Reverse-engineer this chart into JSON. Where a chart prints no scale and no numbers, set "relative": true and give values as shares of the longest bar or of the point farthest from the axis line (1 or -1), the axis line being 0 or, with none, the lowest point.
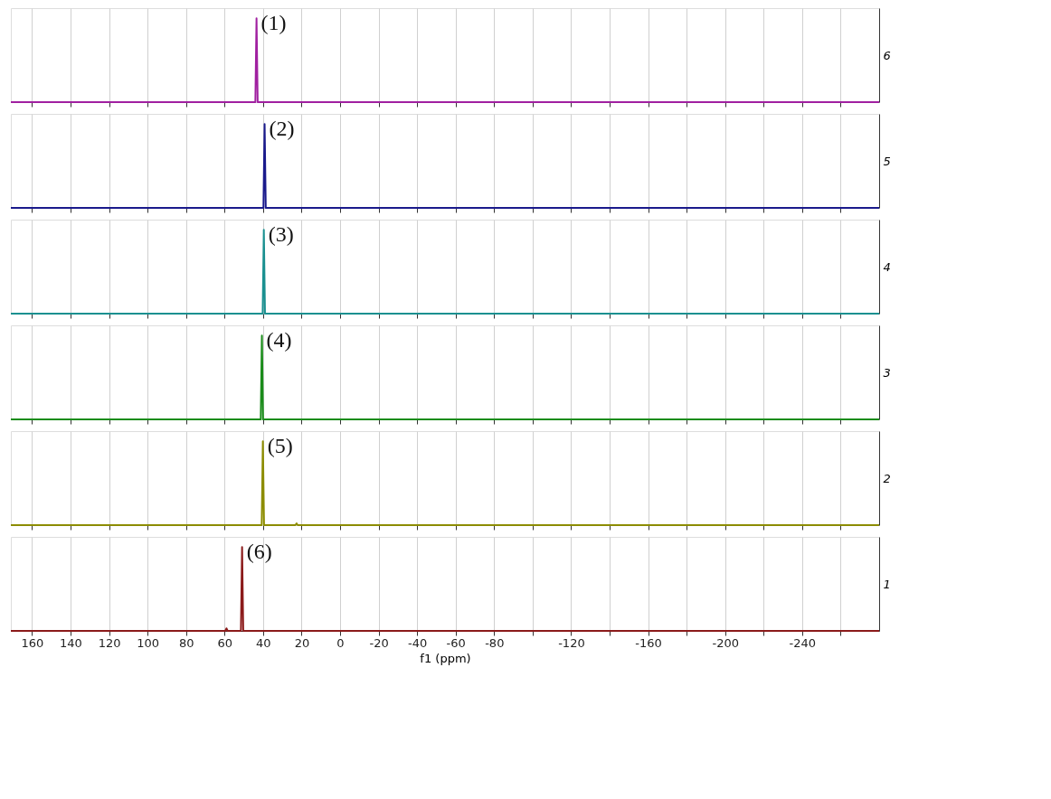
{
  "chart_data": [
    {
      "type": "line",
      "relative": true,
      "ylabel": "6",
      "grid": "x",
      "tick_labels": false,
      "xlim": [
        171,
        -280
      ],
      "xticks": [
        160,
        140,
        120,
        100,
        80,
        60,
        40,
        20,
        0,
        -20,
        -40,
        -60,
        -80,
        {
          "value": -100,
          "label": null
        },
        -120,
        {
          "value": -140,
          "label": null
        },
        -160,
        {
          "value": -180,
          "label": null
        },
        -200,
        {
          "value": -220,
          "label": null
        },
        -240,
        {
          "value": -260,
          "label": null
        }
      ],
      "series": [
        {
          "color": "#a020a0",
          "x": [
            171,
            44,
            43.4,
            42.8,
            -280
          ],
          "values": [
            0,
            0,
            1,
            0,
            0
          ]
        }
      ],
      "annotations": [
        {
          "text": "(1)",
          "x": 43.4,
          "y": 1
        }
      ]
    },
    {
      "type": "line",
      "relative": true,
      "ylabel": "5",
      "grid": "x",
      "tick_labels": false,
      "xlim": [
        171,
        -280
      ],
      "xticks": [
        160,
        140,
        120,
        100,
        80,
        60,
        40,
        20,
        0,
        -20,
        -40,
        -60,
        -80,
        {
          "value": -100,
          "label": null
        },
        -120,
        {
          "value": -140,
          "label": null
        },
        -160,
        {
          "value": -180,
          "label": null
        },
        -200,
        {
          "value": -220,
          "label": null
        },
        -240,
        {
          "value": -260,
          "label": null
        }
      ],
      "series": [
        {
          "color": "#1a1a8c",
          "x": [
            171,
            39.8,
            39.2,
            38.6,
            -280
          ],
          "values": [
            0,
            0,
            1,
            0,
            0
          ]
        }
      ],
      "annotations": [
        {
          "text": "(2)",
          "x": 39.2,
          "y": 1
        }
      ]
    },
    {
      "type": "line",
      "relative": true,
      "ylabel": "4",
      "grid": "x",
      "tick_labels": false,
      "xlim": [
        171,
        -280
      ],
      "xticks": [
        160,
        140,
        120,
        100,
        80,
        60,
        40,
        20,
        0,
        -20,
        -40,
        -60,
        -80,
        {
          "value": -100,
          "label": null
        },
        -120,
        {
          "value": -140,
          "label": null
        },
        -160,
        {
          "value": -180,
          "label": null
        },
        -200,
        {
          "value": -220,
          "label": null
        },
        -240,
        {
          "value": -260,
          "label": null
        }
      ],
      "series": [
        {
          "color": "#1a9090",
          "x": [
            171,
            40.2,
            39.6,
            39,
            -280
          ],
          "values": [
            0,
            0,
            1,
            0,
            0
          ]
        }
      ],
      "annotations": [
        {
          "text": "(3)",
          "x": 39.6,
          "y": 1
        }
      ]
    },
    {
      "type": "line",
      "relative": true,
      "ylabel": "3",
      "grid": "x",
      "tick_labels": false,
      "xlim": [
        171,
        -280
      ],
      "xticks": [
        160,
        140,
        120,
        100,
        80,
        60,
        40,
        20,
        0,
        -20,
        -40,
        -60,
        -80,
        {
          "value": -100,
          "label": null
        },
        -120,
        {
          "value": -140,
          "label": null
        },
        -160,
        {
          "value": -180,
          "label": null
        },
        -200,
        {
          "value": -220,
          "label": null
        },
        -240,
        {
          "value": -260,
          "label": null
        }
      ],
      "series": [
        {
          "color": "#1a8c1a",
          "x": [
            171,
            41.2,
            40.6,
            40,
            -280
          ],
          "values": [
            0,
            0,
            1,
            0,
            0
          ]
        }
      ],
      "annotations": [
        {
          "text": "(4)",
          "x": 40.6,
          "y": 1
        }
      ]
    },
    {
      "type": "line",
      "relative": true,
      "ylabel": "2",
      "grid": "x",
      "tick_labels": false,
      "xlim": [
        171,
        -280
      ],
      "xticks": [
        160,
        140,
        120,
        100,
        80,
        60,
        40,
        20,
        0,
        -20,
        -40,
        -60,
        -80,
        {
          "value": -100,
          "label": null
        },
        -120,
        {
          "value": -140,
          "label": null
        },
        -160,
        {
          "value": -180,
          "label": null
        },
        -200,
        {
          "value": -220,
          "label": null
        },
        -240,
        {
          "value": -260,
          "label": null
        }
      ],
      "series": [
        {
          "color": "#8c8c00",
          "x": [
            171,
            40.7,
            40.1,
            39.5,
            23.2,
            22.6,
            22,
            -280
          ],
          "values": [
            0,
            0,
            1,
            0,
            0,
            0.02,
            0,
            0
          ]
        }
      ],
      "annotations": [
        {
          "text": "(5)",
          "x": 40.1,
          "y": 1
        }
      ]
    },
    {
      "type": "line",
      "relative": true,
      "ylabel": "1",
      "xlabel": "f1 (ppm)",
      "grid": "x",
      "tick_labels": "x",
      "xlim": [
        171,
        -280
      ],
      "xticks": [
        160,
        140,
        120,
        100,
        80,
        60,
        40,
        20,
        0,
        -20,
        -40,
        -60,
        -80,
        {
          "value": -100,
          "label": null
        },
        -120,
        {
          "value": -140,
          "label": null
        },
        -160,
        {
          "value": -180,
          "label": null
        },
        -200,
        {
          "value": -220,
          "label": null
        },
        -240,
        {
          "value": -260,
          "label": null
        }
      ],
      "series": [
        {
          "color": "#8b1a1a",
          "x": [
            171,
            59.6,
            59,
            58.4,
            51.5,
            50.9,
            50.3,
            -280
          ],
          "values": [
            0,
            0,
            0.03,
            0,
            0,
            1,
            0,
            0
          ]
        }
      ],
      "annotations": [
        {
          "text": "(6)",
          "x": 50.9,
          "y": 1
        }
      ]
    }
  ]
}
